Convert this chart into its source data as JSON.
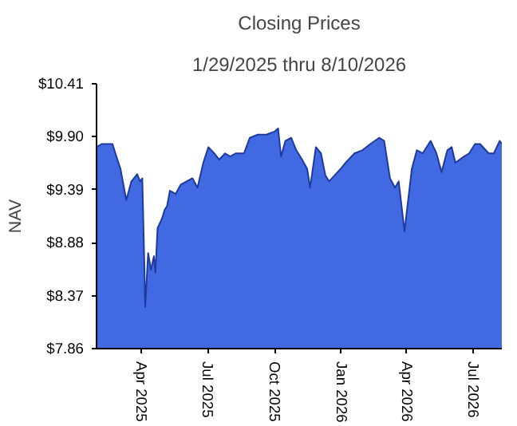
{
  "chart_data": {
    "type": "area",
    "title": "Closing Prices",
    "subtitle": "1/29/2025 thru 8/10/2026",
    "ylabel": "NAV",
    "x": [
      "2025-01-29",
      "2025-02-05",
      "2025-02-16",
      "2025-02-20",
      "2025-02-24",
      "2025-03-03",
      "2025-03-11",
      "2025-03-18",
      "2025-03-26",
      "2025-03-30",
      "2025-04-02",
      "2025-04-05",
      "2025-04-06",
      "2025-04-10",
      "2025-04-14",
      "2025-04-18",
      "2025-04-20",
      "2025-04-23",
      "2025-04-29",
      "2025-05-03",
      "2025-05-06",
      "2025-05-10",
      "2025-05-18",
      "2025-05-25",
      "2025-06-02",
      "2025-06-10",
      "2025-06-17",
      "2025-06-25",
      "2025-07-02",
      "2025-07-10",
      "2025-07-17",
      "2025-07-25",
      "2025-08-01",
      "2025-08-09",
      "2025-08-20",
      "2025-08-28",
      "2025-09-08",
      "2025-09-20",
      "2025-10-01",
      "2025-10-06",
      "2025-10-10",
      "2025-10-16",
      "2025-10-24",
      "2025-10-31",
      "2025-11-08",
      "2025-11-15",
      "2025-11-19",
      "2025-11-27",
      "2025-12-04",
      "2025-12-10",
      "2025-12-15",
      "2025-12-23",
      "2025-12-31",
      "2026-01-07",
      "2026-01-19",
      "2026-01-30",
      "2026-02-10",
      "2026-02-22",
      "2026-03-01",
      "2026-03-09",
      "2026-03-16",
      "2026-03-21",
      "2026-03-26",
      "2026-03-29",
      "2026-04-03",
      "2026-04-08",
      "2026-04-15",
      "2026-04-23",
      "2026-05-04",
      "2026-05-12",
      "2026-05-19",
      "2026-05-27",
      "2026-06-02",
      "2026-06-07",
      "2026-06-19",
      "2026-06-26",
      "2026-07-04",
      "2026-07-11",
      "2026-07-23",
      "2026-07-30",
      "2026-08-07",
      "2026-08-10"
    ],
    "series": [
      {
        "color": "#4169e1",
        "values": [
          9.8,
          9.83,
          9.83,
          9.83,
          9.74,
          9.59,
          9.29,
          9.47,
          9.54,
          9.47,
          9.5,
          8.62,
          8.26,
          8.78,
          8.62,
          8.75,
          8.59,
          9.02,
          9.11,
          9.2,
          9.23,
          9.38,
          9.35,
          9.44,
          9.47,
          9.5,
          9.41,
          9.65,
          9.8,
          9.74,
          9.68,
          9.74,
          9.71,
          9.74,
          9.74,
          9.89,
          9.92,
          9.92,
          9.95,
          9.98,
          9.71,
          9.86,
          9.89,
          9.77,
          9.68,
          9.59,
          9.41,
          9.8,
          9.74,
          9.53,
          9.47,
          9.53,
          9.59,
          9.65,
          9.74,
          9.77,
          9.83,
          9.89,
          9.86,
          9.5,
          9.41,
          9.47,
          9.17,
          8.99,
          9.29,
          9.59,
          9.77,
          9.74,
          9.86,
          9.74,
          9.56,
          9.77,
          9.8,
          9.65,
          9.71,
          9.74,
          9.83,
          9.83,
          9.74,
          9.74,
          9.86,
          9.83
        ]
      }
    ],
    "xlim": [
      "2025-01-29",
      "2026-08-10"
    ],
    "xticks": [
      {
        "value": "2025-04-01",
        "label": "Apr 2025"
      },
      {
        "value": "2025-07-01",
        "label": "Jul 2025"
      },
      {
        "value": "2025-10-01",
        "label": "Oct 2025"
      },
      {
        "value": "2026-01-01",
        "label": "Jan 2026"
      },
      {
        "value": "2026-04-01",
        "label": "Apr 2026"
      },
      {
        "value": "2026-07-01",
        "label": "Jul 2026"
      }
    ],
    "ylim": [
      7.86,
      10.41
    ],
    "yticks": [
      {
        "value": 7.86,
        "label": "$7.86"
      },
      {
        "value": 8.37,
        "label": "$8.37"
      },
      {
        "value": 8.88,
        "label": "$8.88"
      },
      {
        "value": 9.39,
        "label": "$9.39"
      },
      {
        "value": 9.9,
        "label": "$9.90"
      },
      {
        "value": 10.41,
        "label": "$10.41"
      }
    ],
    "grid": false
  }
}
